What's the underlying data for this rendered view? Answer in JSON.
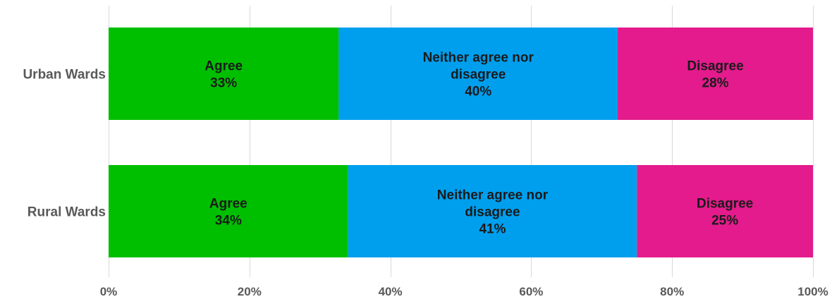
{
  "chart_data": {
    "type": "bar",
    "orientation": "horizontal",
    "stacked": "100%",
    "categories": [
      "Urban Wards",
      "Rural Wards"
    ],
    "series": [
      {
        "name": "Agree",
        "color": "#00bf00",
        "values": [
          33,
          34
        ],
        "value_labels": [
          "33%",
          "34%"
        ]
      },
      {
        "name": "Neither agree nor disagree",
        "color": "#009fee",
        "values": [
          40,
          41
        ],
        "value_labels": [
          "40%",
          "41%"
        ]
      },
      {
        "name": "Disagree",
        "color": "#e31b8c",
        "values": [
          28,
          25
        ],
        "value_labels": [
          "28%",
          "25%"
        ]
      }
    ],
    "segment_label_lines": [
      [
        "Agree"
      ],
      [
        "Neither agree nor",
        "disagree"
      ],
      [
        "Disagree"
      ]
    ],
    "xlim": [
      0,
      100
    ],
    "x_ticks": [
      0,
      20,
      40,
      60,
      80,
      100
    ],
    "x_tick_labels": [
      "0%",
      "20%",
      "40%",
      "60%",
      "80%",
      "100%"
    ],
    "grid": "vertical",
    "legend": "none",
    "gridline_color": "#d9d9d9"
  }
}
